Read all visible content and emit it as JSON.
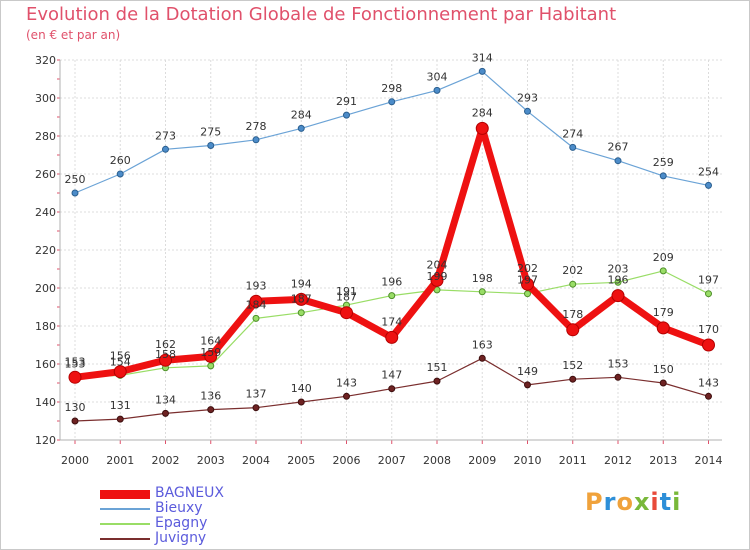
{
  "header": {
    "title": "Evolution de la Dotation Globale de Fonctionnement par Habitant",
    "subtitle": "(en € et par an)"
  },
  "logo": {
    "text": "Proxiti",
    "colors": [
      "#f0a23b",
      "#2e8fd8",
      "#f0a23b",
      "#79b83a",
      "#e84a3a",
      "#2e8fd8",
      "#79b83a"
    ]
  },
  "chart_data": {
    "type": "line",
    "title": "Evolution de la Dotation Globale de Fonctionnement par Habitant",
    "subtitle": "(en € et par an)",
    "xlabel": "",
    "ylabel": "",
    "x": [
      "2000",
      "2001",
      "2002",
      "2003",
      "2004",
      "2005",
      "2006",
      "2007",
      "2008",
      "2009",
      "2010",
      "2011",
      "2012",
      "2013",
      "2014"
    ],
    "ylim": [
      120,
      320
    ],
    "yticks": [
      120,
      140,
      160,
      180,
      200,
      220,
      240,
      260,
      280,
      300,
      320
    ],
    "grid": true,
    "legend_position": "bottom-left",
    "series": [
      {
        "name": "BAGNEUX",
        "color": "#ee1111",
        "values": [
          153,
          156,
          162,
          164,
          193,
          194,
          187,
          174,
          204,
          284,
          202,
          178,
          196,
          179,
          170
        ]
      },
      {
        "name": "Bieuxy",
        "color": "#6ba3d6",
        "values": [
          250,
          260,
          273,
          275,
          278,
          284,
          291,
          298,
          304,
          314,
          293,
          274,
          267,
          259,
          254
        ]
      },
      {
        "name": "Epagny",
        "color": "#99dd66",
        "values": [
          153,
          154,
          158,
          159,
          184,
          187,
          191,
          196,
          199,
          198,
          197,
          202,
          203,
          209,
          197
        ]
      },
      {
        "name": "Juvigny",
        "color": "#7a2e2e",
        "values": [
          130,
          131,
          134,
          136,
          137,
          140,
          143,
          147,
          151,
          163,
          149,
          152,
          153,
          150,
          143
        ]
      }
    ]
  }
}
